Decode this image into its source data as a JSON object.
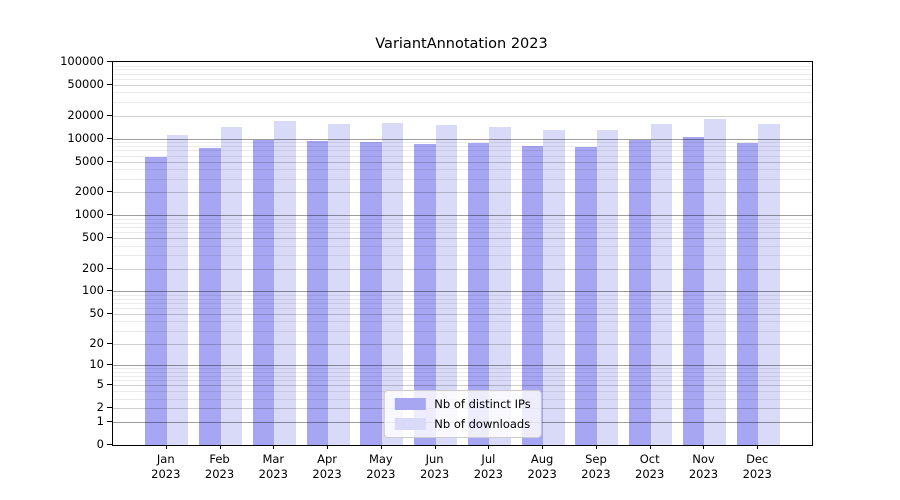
{
  "title": "VariantAnnotation 2023",
  "chart_data": {
    "type": "bar",
    "title": "VariantAnnotation 2023",
    "scale": "log10(value+1)",
    "ylim": [
      0,
      100000
    ],
    "grid": true,
    "legend_position": "lower center",
    "year": "2023",
    "categories": [
      "Jan",
      "Feb",
      "Mar",
      "Apr",
      "May",
      "Jun",
      "Jul",
      "Aug",
      "Sep",
      "Oct",
      "Nov",
      "Dec"
    ],
    "y_ticks": [
      100000,
      50000,
      20000,
      10000,
      5000,
      2000,
      1000,
      500,
      200,
      100,
      50,
      20,
      10,
      5,
      2,
      1,
      0
    ],
    "series": [
      {
        "name": "Nb of distinct IPs",
        "color": "#a6a6f2",
        "values": [
          5750,
          7600,
          9600,
          9250,
          8950,
          8600,
          8700,
          8050,
          7850,
          9700,
          10600,
          8800
        ]
      },
      {
        "name": "Nb of downloads",
        "color": "#d9d9f8",
        "values": [
          11050,
          14150,
          17100,
          15500,
          16100,
          14900,
          14050,
          13050,
          12800,
          15350,
          17850,
          15500
        ]
      }
    ]
  }
}
